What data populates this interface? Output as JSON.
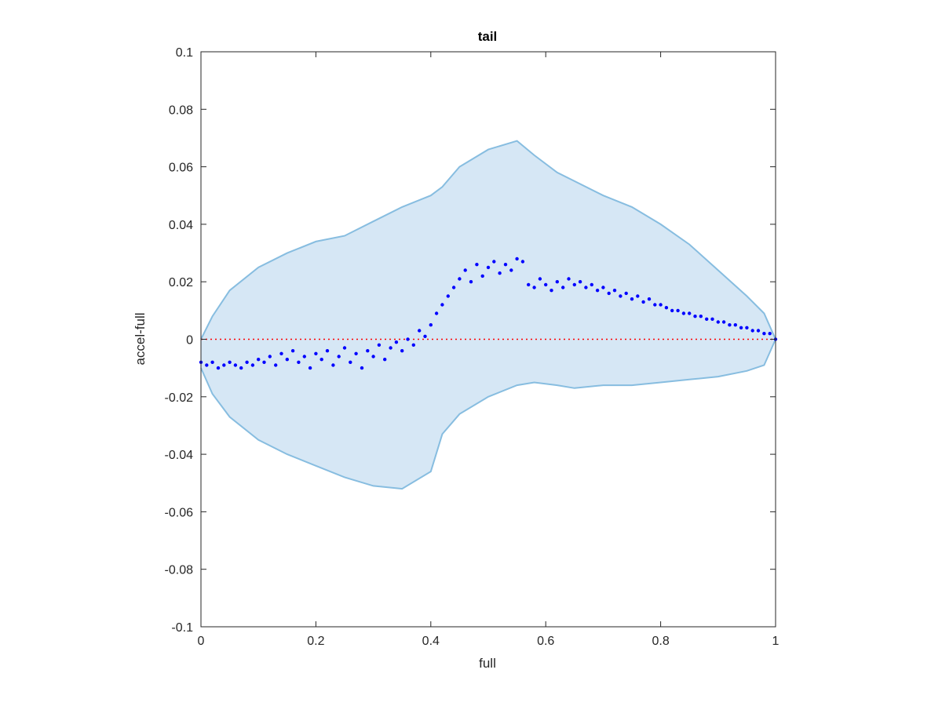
{
  "chart_data": {
    "type": "scatter",
    "title": "tail",
    "xlabel": "full",
    "ylabel": "accel-full",
    "xlim": [
      0,
      1
    ],
    "ylim": [
      -0.1,
      0.1
    ],
    "x_ticks": [
      0,
      0.2,
      0.4,
      0.6,
      0.8,
      1
    ],
    "x_tick_labels": [
      "0",
      "0.2",
      "0.4",
      "0.6",
      "0.8",
      "1"
    ],
    "y_ticks": [
      -0.1,
      -0.08,
      -0.06,
      -0.04,
      -0.02,
      0,
      0.02,
      0.04,
      0.06,
      0.08,
      0.1
    ],
    "y_tick_labels": [
      "-0.1",
      "-0.08",
      "-0.06",
      "-0.04",
      "-0.02",
      "0",
      "0.02",
      "0.04",
      "0.06",
      "0.08",
      "0.1"
    ],
    "grid": false,
    "legend": null,
    "colors": {
      "band_fill": "#d6e7f5",
      "band_edge": "#87bde0",
      "points": "#0000ff",
      "zero_line": "#ff0000",
      "axes": "#262626"
    },
    "reference_line": {
      "y": 0,
      "style": "dotted"
    },
    "band": {
      "x": [
        0.0,
        0.02,
        0.05,
        0.1,
        0.15,
        0.2,
        0.25,
        0.3,
        0.35,
        0.4,
        0.42,
        0.45,
        0.5,
        0.55,
        0.58,
        0.62,
        0.65,
        0.7,
        0.75,
        0.8,
        0.85,
        0.9,
        0.95,
        0.98,
        1.0
      ],
      "upper": [
        0.0,
        0.008,
        0.017,
        0.025,
        0.03,
        0.034,
        0.036,
        0.041,
        0.046,
        0.05,
        0.053,
        0.06,
        0.066,
        0.069,
        0.064,
        0.058,
        0.055,
        0.05,
        0.046,
        0.04,
        0.033,
        0.024,
        0.015,
        0.009,
        0.0
      ],
      "lower": [
        -0.01,
        -0.019,
        -0.027,
        -0.035,
        -0.04,
        -0.044,
        -0.048,
        -0.051,
        -0.052,
        -0.046,
        -0.033,
        -0.026,
        -0.02,
        -0.016,
        -0.015,
        -0.016,
        -0.017,
        -0.016,
        -0.016,
        -0.015,
        -0.014,
        -0.013,
        -0.011,
        -0.009,
        0.0
      ]
    },
    "series": [
      {
        "x": [
          0.0,
          0.01,
          0.02,
          0.03,
          0.04,
          0.05,
          0.06,
          0.07,
          0.08,
          0.09,
          0.1,
          0.11,
          0.12,
          0.13,
          0.14,
          0.15,
          0.16,
          0.17,
          0.18,
          0.19,
          0.2,
          0.21,
          0.22,
          0.23,
          0.24,
          0.25,
          0.26,
          0.27,
          0.28,
          0.29,
          0.3,
          0.31,
          0.32,
          0.33,
          0.34,
          0.35,
          0.36,
          0.37,
          0.38,
          0.39,
          0.4,
          0.41,
          0.42,
          0.43,
          0.44,
          0.45,
          0.46,
          0.47,
          0.48,
          0.49,
          0.5,
          0.51,
          0.52,
          0.53,
          0.54,
          0.55,
          0.56,
          0.57,
          0.58,
          0.59,
          0.6,
          0.61,
          0.62,
          0.63,
          0.64,
          0.65,
          0.66,
          0.67,
          0.68,
          0.69,
          0.7,
          0.71,
          0.72,
          0.73,
          0.74,
          0.75,
          0.76,
          0.77,
          0.78,
          0.79,
          0.8,
          0.81,
          0.82,
          0.83,
          0.84,
          0.85,
          0.86,
          0.87,
          0.88,
          0.89,
          0.9,
          0.91,
          0.92,
          0.93,
          0.94,
          0.95,
          0.96,
          0.97,
          0.98,
          0.99,
          1.0
        ],
        "y": [
          -0.008,
          -0.009,
          -0.008,
          -0.01,
          -0.009,
          -0.008,
          -0.009,
          -0.01,
          -0.008,
          -0.009,
          -0.007,
          -0.008,
          -0.006,
          -0.009,
          -0.005,
          -0.007,
          -0.004,
          -0.008,
          -0.006,
          -0.01,
          -0.005,
          -0.007,
          -0.004,
          -0.009,
          -0.006,
          -0.003,
          -0.008,
          -0.005,
          -0.01,
          -0.004,
          -0.006,
          -0.002,
          -0.007,
          -0.003,
          -0.001,
          -0.004,
          0.0,
          -0.002,
          0.003,
          0.001,
          0.005,
          0.009,
          0.012,
          0.015,
          0.018,
          0.021,
          0.024,
          0.02,
          0.026,
          0.022,
          0.025,
          0.027,
          0.023,
          0.026,
          0.024,
          0.028,
          0.027,
          0.019,
          0.018,
          0.021,
          0.019,
          0.017,
          0.02,
          0.018,
          0.021,
          0.019,
          0.02,
          0.018,
          0.019,
          0.017,
          0.018,
          0.016,
          0.017,
          0.015,
          0.016,
          0.014,
          0.015,
          0.013,
          0.014,
          0.012,
          0.012,
          0.011,
          0.01,
          0.01,
          0.009,
          0.009,
          0.008,
          0.008,
          0.007,
          0.007,
          0.006,
          0.006,
          0.005,
          0.005,
          0.004,
          0.004,
          0.003,
          0.003,
          0.002,
          0.002,
          0.0
        ]
      }
    ]
  }
}
